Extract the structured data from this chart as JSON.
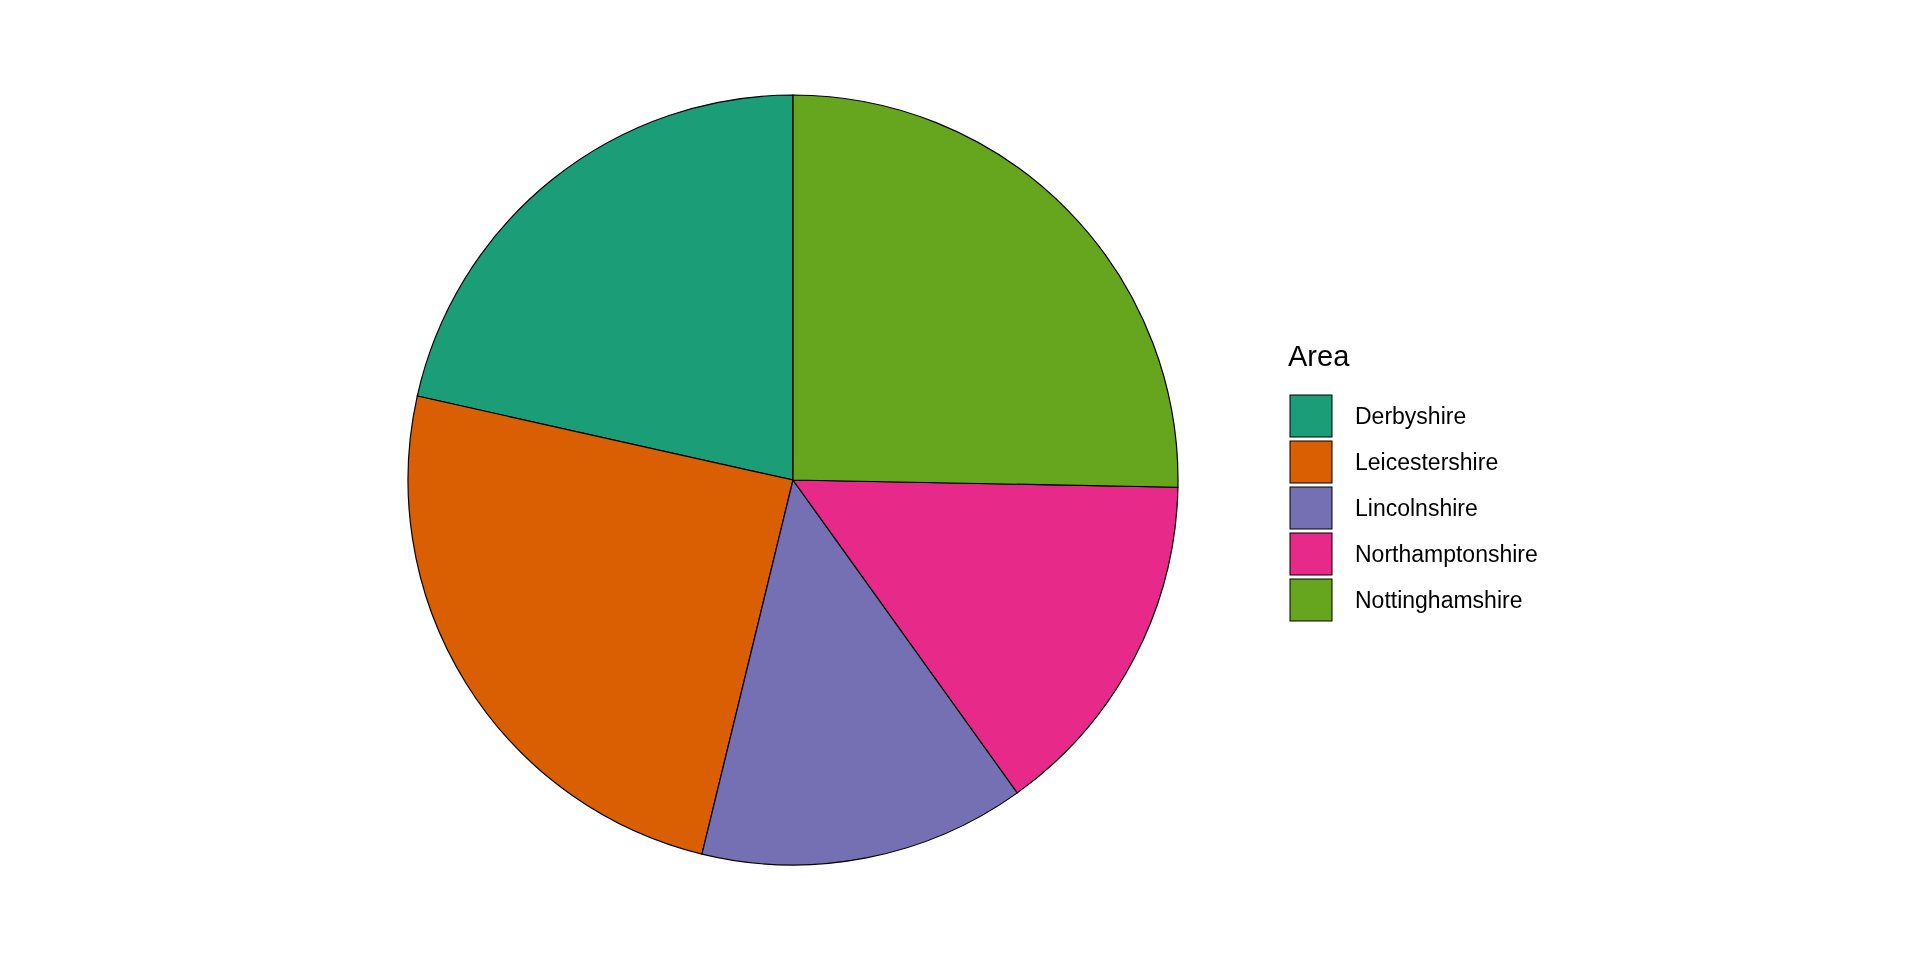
{
  "chart_data": {
    "type": "pie",
    "legend_title": "Area",
    "legend": "right",
    "categories": [
      "Derbyshire",
      "Leicestershire",
      "Lincolnshire",
      "Northamptonshire",
      "Nottinghamshire"
    ],
    "values": [
      21.5,
      24.7,
      13.7,
      14.8,
      25.3
    ],
    "colors": [
      "#1b9e77",
      "#d95f02",
      "#7570b3",
      "#e7298a",
      "#66a61e"
    ]
  }
}
